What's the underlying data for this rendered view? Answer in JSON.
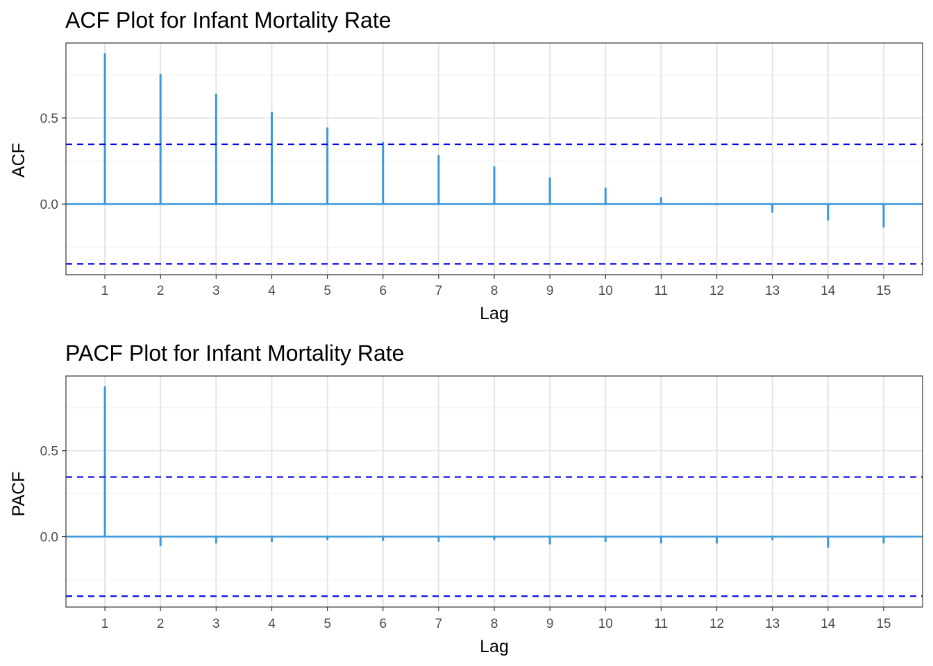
{
  "colors": {
    "bar": "#3a99d8",
    "zero_line": "#3a99d8",
    "ci_line": "#0000ee",
    "grid_major": "#e4e4e4",
    "grid_minor": "#f2f2f2",
    "panel_border": "#333333"
  },
  "chart_data": [
    {
      "type": "bar",
      "title": "ACF Plot for Infant Mortality Rate",
      "xlabel": "Lag",
      "ylabel": "ACF",
      "x": [
        1,
        2,
        3,
        4,
        5,
        6,
        7,
        8,
        9,
        10,
        11,
        12,
        13,
        14,
        15
      ],
      "x_tick_labels": [
        "1",
        "2",
        "3",
        "4",
        "5",
        "6",
        "7",
        "8",
        "9",
        "10",
        "11",
        "12",
        "13",
        "14",
        "15"
      ],
      "values": [
        0.875,
        0.755,
        0.64,
        0.535,
        0.445,
        0.36,
        0.285,
        0.22,
        0.155,
        0.095,
        0.04,
        -0.005,
        -0.05,
        -0.095,
        -0.135
      ],
      "confidence_bounds": [
        0.347,
        -0.347
      ],
      "y_ticks": [
        0.0,
        0.5
      ],
      "y_tick_labels": [
        "0.0",
        "0.5"
      ],
      "xlim": [
        0.3,
        15.7
      ],
      "ylim": [
        -0.41,
        0.935
      ],
      "grid": true
    },
    {
      "type": "bar",
      "title": "PACF Plot for Infant Mortality Rate",
      "xlabel": "Lag",
      "ylabel": "PACF",
      "x": [
        1,
        2,
        3,
        4,
        5,
        6,
        7,
        8,
        9,
        10,
        11,
        12,
        13,
        14,
        15
      ],
      "x_tick_labels": [
        "1",
        "2",
        "3",
        "4",
        "5",
        "6",
        "7",
        "8",
        "9",
        "10",
        "11",
        "12",
        "13",
        "14",
        "15"
      ],
      "values": [
        0.875,
        -0.055,
        -0.04,
        -0.03,
        -0.02,
        -0.025,
        -0.03,
        -0.02,
        -0.045,
        -0.03,
        -0.04,
        -0.04,
        -0.02,
        -0.065,
        -0.04
      ],
      "confidence_bounds": [
        0.347,
        -0.347
      ],
      "y_ticks": [
        0.0,
        0.5
      ],
      "y_tick_labels": [
        "0.0",
        "0.5"
      ],
      "xlim": [
        0.3,
        15.7
      ],
      "ylim": [
        -0.41,
        0.935
      ],
      "grid": true
    }
  ]
}
